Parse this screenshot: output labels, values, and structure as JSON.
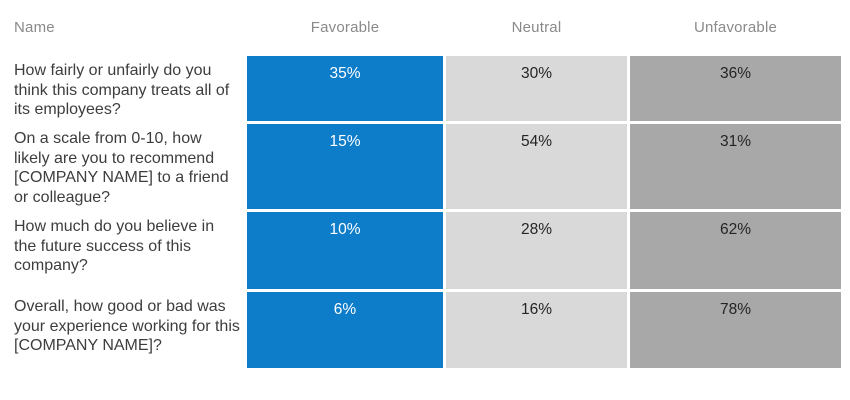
{
  "table": {
    "headers": [
      {
        "label": "Name"
      },
      {
        "label": "Favorable"
      },
      {
        "label": "Neutral"
      },
      {
        "label": "Unfavorable"
      }
    ],
    "rows": [
      {
        "question": "How fairly or unfairly do you think this company treats all of its employees?",
        "favorable": "35%",
        "neutral": "30%",
        "unfavorable": "36%"
      },
      {
        "question": "On a scale from 0-10, how likely are you to recommend [COMPANY NAME] to a friend or colleague?",
        "favorable": "15%",
        "neutral": "54%",
        "unfavorable": "31%"
      },
      {
        "question": "How much do you believe in the future success of this company?",
        "favorable": "10%",
        "neutral": "28%",
        "unfavorable": "62%"
      },
      {
        "question": "Overall, how good or bad was your experience working for this [COMPANY NAME]?",
        "favorable": "6%",
        "neutral": "16%",
        "unfavorable": "78%"
      }
    ]
  },
  "colors": {
    "favorable_cell": "#0d7cc9",
    "neutral_cell": "#d9d9d9",
    "unfavorable_cell": "#a8a8a8",
    "header_text": "#8a8a8a",
    "question_text": "#3d3d3d"
  },
  "chart_data": {
    "type": "table",
    "title": "",
    "categories": [
      "How fairly or unfairly do you think this company treats all of its employees?",
      "On a scale from 0-10, how likely are you to recommend [COMPANY NAME] to a friend or colleague?",
      "How much do you believe in the future success of this company?",
      "Overall, how good or bad was your experience working for this [COMPANY NAME]?"
    ],
    "series": [
      {
        "name": "Favorable",
        "values": [
          35,
          15,
          10,
          6
        ]
      },
      {
        "name": "Neutral",
        "values": [
          30,
          54,
          28,
          16
        ]
      },
      {
        "name": "Unfavorable",
        "values": [
          36,
          31,
          62,
          78
        ]
      }
    ],
    "unit": "%",
    "layout": "heatmap-table, question column left, one colored column per sentiment, values shown as % labels at top of each cell"
  }
}
